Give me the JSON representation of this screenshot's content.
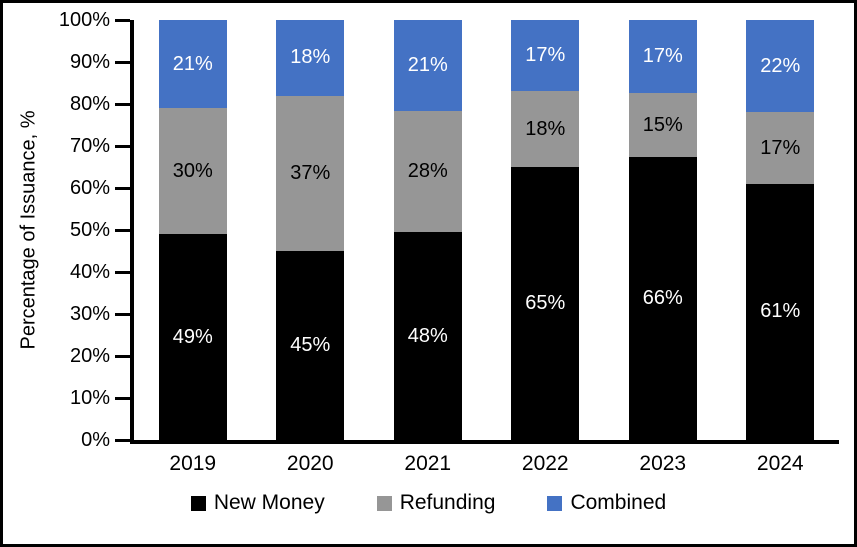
{
  "chart_data": {
    "type": "bar",
    "stacked": true,
    "categories": [
      "2019",
      "2020",
      "2021",
      "2022",
      "2023",
      "2024"
    ],
    "series": [
      {
        "name": "New Money",
        "color": "#000000",
        "label_color": "#ffffff",
        "values": [
          49,
          45,
          48,
          65,
          66,
          61
        ]
      },
      {
        "name": "Refunding",
        "color": "#969696",
        "label_color": "#000000",
        "values": [
          30,
          37,
          28,
          18,
          15,
          17
        ]
      },
      {
        "name": "Combined",
        "color": "#4472C4",
        "label_color": "#ffffff",
        "values": [
          21,
          18,
          21,
          17,
          17,
          22
        ]
      }
    ],
    "title": "",
    "xlabel": "",
    "ylabel": "Percentage of Issuance, %",
    "ylim": [
      0,
      100
    ],
    "ytick_step": 10,
    "yticks": [
      "0%",
      "10%",
      "20%",
      "30%",
      "40%",
      "50%",
      "60%",
      "70%",
      "80%",
      "90%",
      "100%"
    ],
    "value_suffix": "%",
    "grid": false,
    "legend_position": "bottom"
  }
}
